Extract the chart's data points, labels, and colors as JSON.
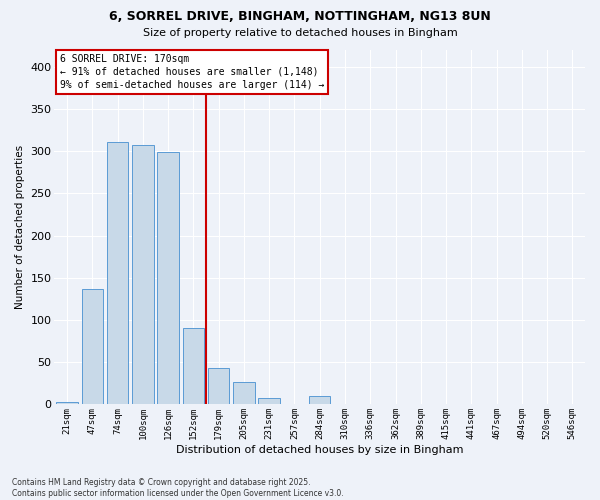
{
  "title_line1": "6, SORREL DRIVE, BINGHAM, NOTTINGHAM, NG13 8UN",
  "title_line2": "Size of property relative to detached houses in Bingham",
  "xlabel": "Distribution of detached houses by size in Bingham",
  "ylabel": "Number of detached properties",
  "categories": [
    "21sqm",
    "47sqm",
    "74sqm",
    "100sqm",
    "126sqm",
    "152sqm",
    "179sqm",
    "205sqm",
    "231sqm",
    "257sqm",
    "284sqm",
    "310sqm",
    "336sqm",
    "362sqm",
    "389sqm",
    "415sqm",
    "441sqm",
    "467sqm",
    "494sqm",
    "520sqm",
    "546sqm"
  ],
  "values": [
    3,
    137,
    311,
    308,
    299,
    90,
    43,
    27,
    8,
    0,
    10,
    0,
    0,
    0,
    0,
    0,
    0,
    0,
    0,
    0,
    0
  ],
  "bar_color": "#c8d9e8",
  "bar_edge_color": "#5b9bd5",
  "vline_color": "#cc0000",
  "vline_x_index": 6,
  "annotation_text": "6 SORREL DRIVE: 170sqm\n← 91% of detached houses are smaller (1,148)\n9% of semi-detached houses are larger (114) →",
  "annotation_box_color": "#cc0000",
  "ylim": [
    0,
    420
  ],
  "yticks": [
    0,
    50,
    100,
    150,
    200,
    250,
    300,
    350,
    400
  ],
  "background_color": "#eef2f9",
  "grid_color": "#ffffff",
  "footnote": "Contains HM Land Registry data © Crown copyright and database right 2025.\nContains public sector information licensed under the Open Government Licence v3.0."
}
